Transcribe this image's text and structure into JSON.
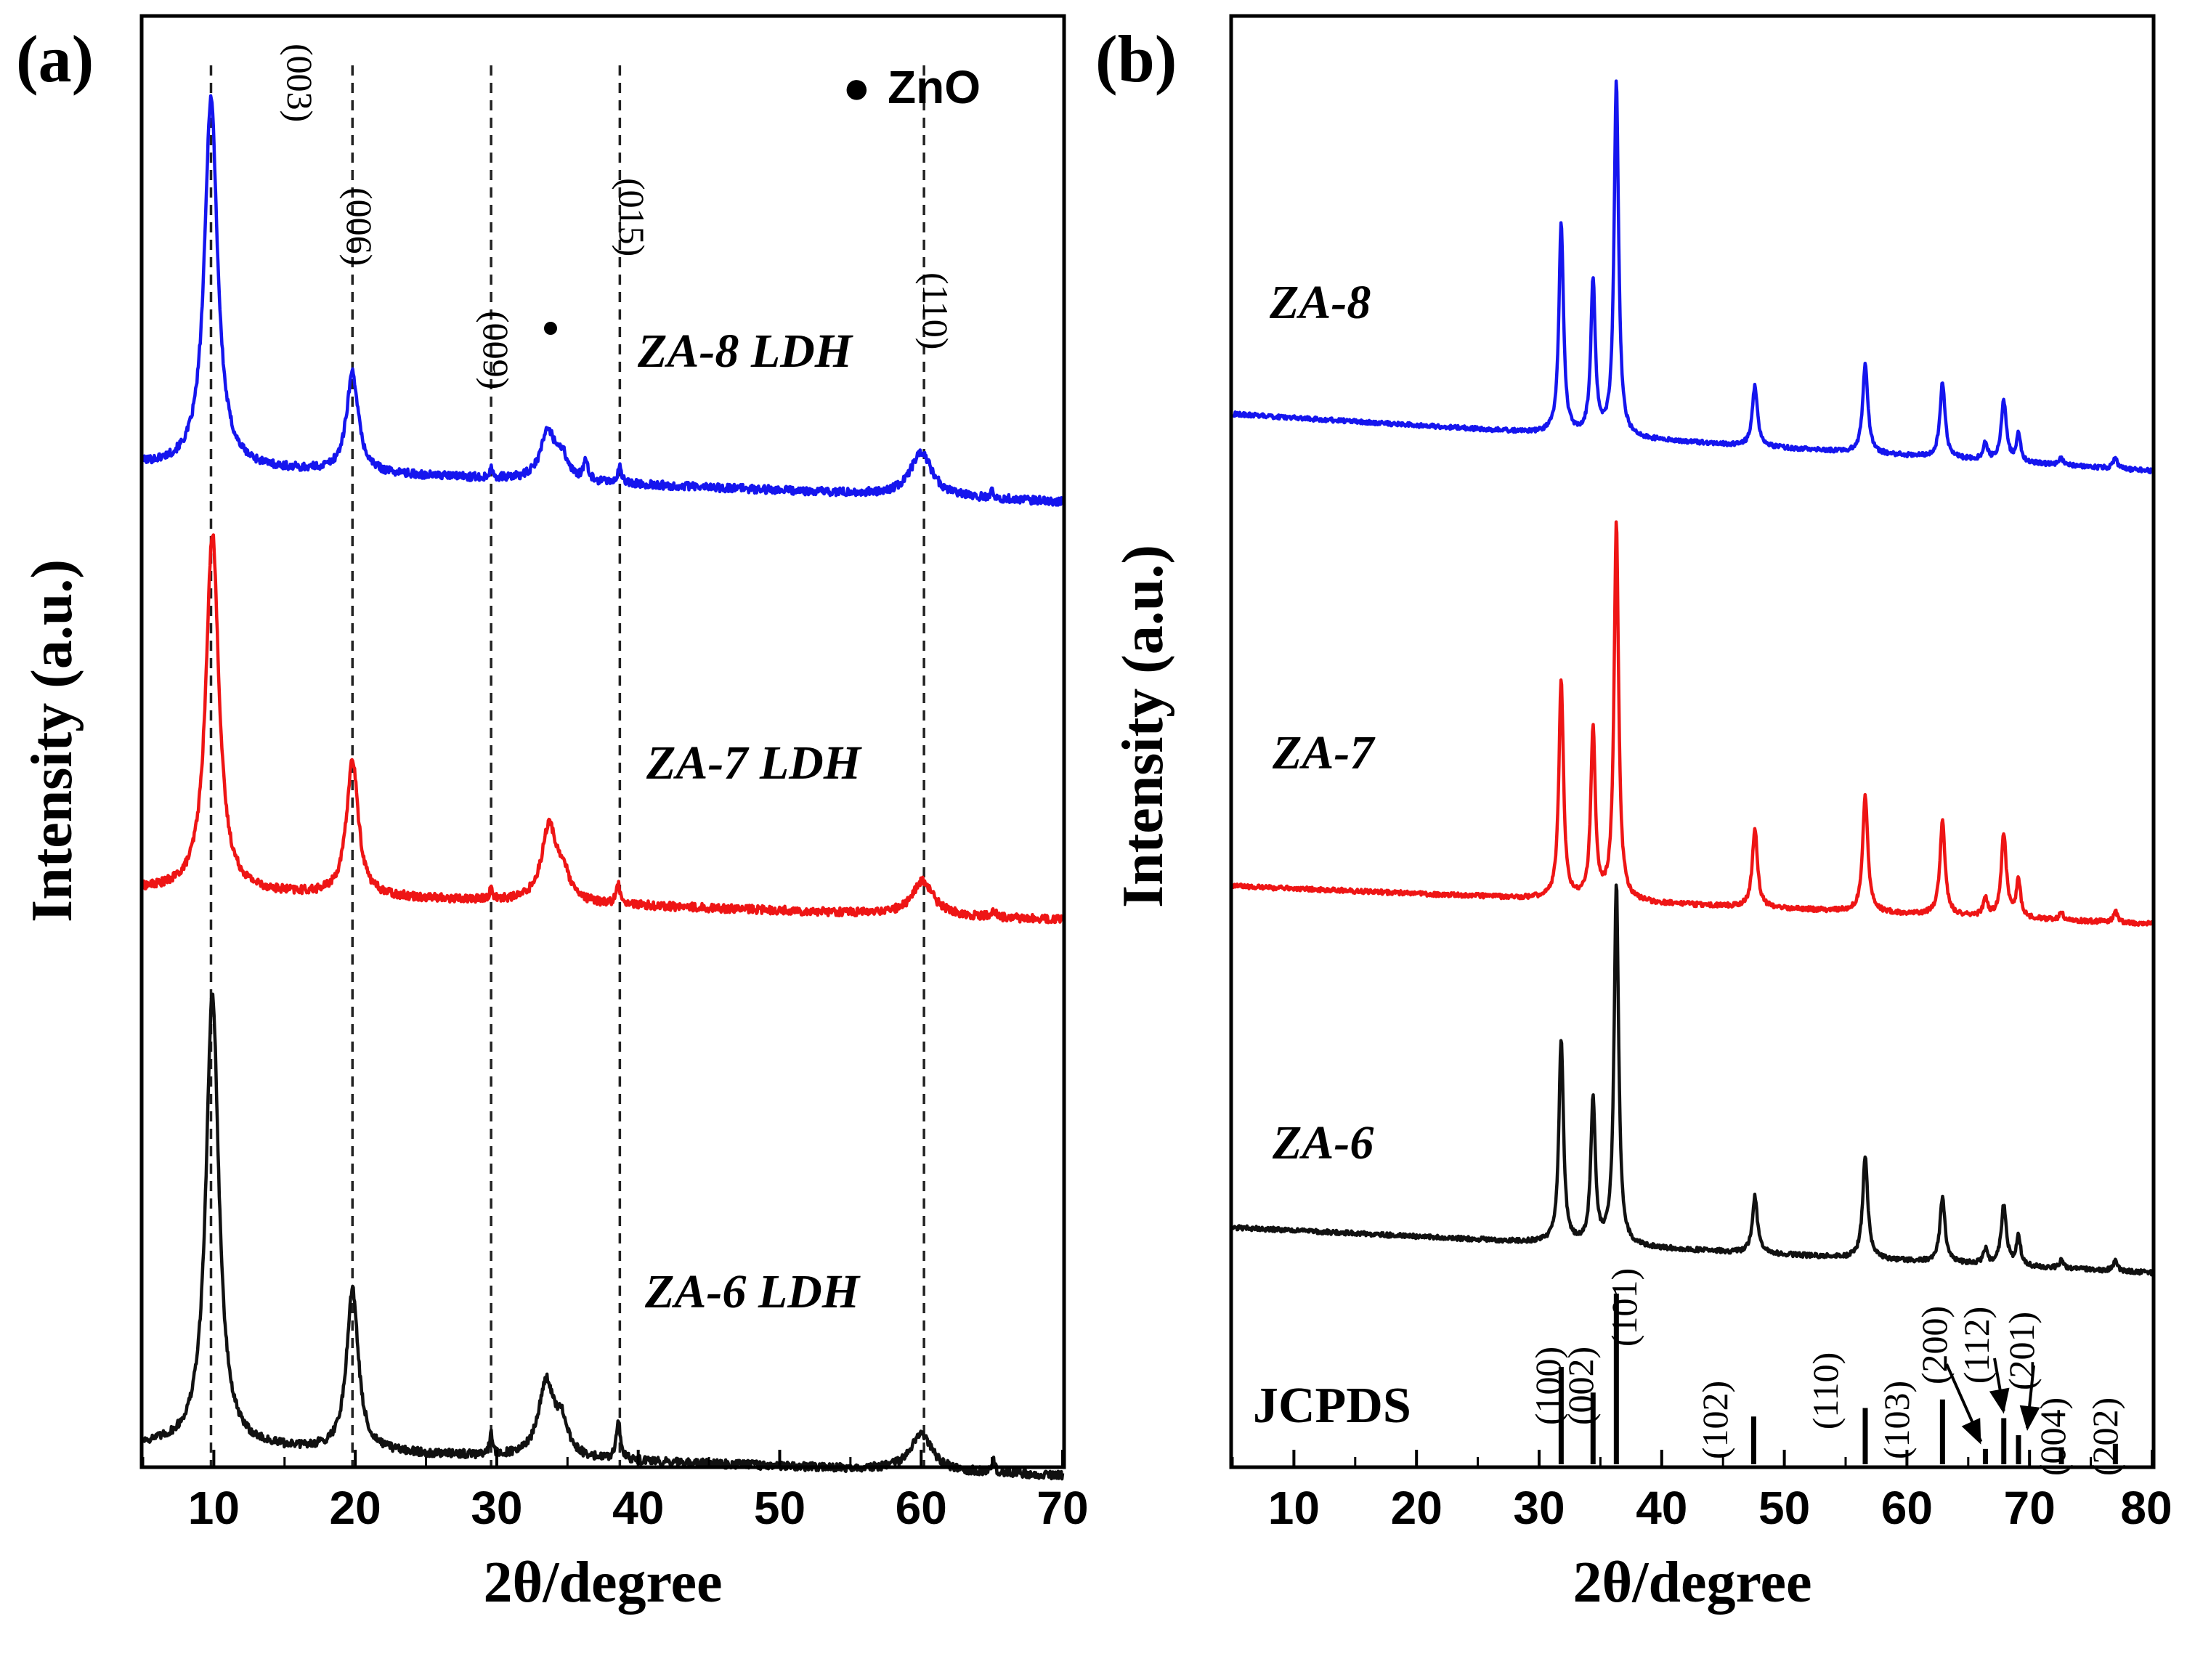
{
  "chart_data": [
    {
      "panel": "(a)",
      "type": "line",
      "xlabel": "2θ/degree",
      "ylabel": "Intensity (a.u.)",
      "xlim": [
        5,
        70
      ],
      "xticks": [
        "10",
        "20",
        "30",
        "40",
        "50",
        "60",
        "70"
      ],
      "legend": {
        "marker": "●",
        "label": "ZnO"
      },
      "reference_lines": [
        {
          "x": 9.8,
          "label": "(003)"
        },
        {
          "x": 19.8,
          "label": "(006)"
        },
        {
          "x": 29.6,
          "label": "(009)"
        },
        {
          "x": 38.7,
          "label": "(015)"
        },
        {
          "x": 60.2,
          "label": "(110)"
        }
      ],
      "zno_marker_x": 33.7,
      "series": [
        {
          "name": "ZA-8 LDH",
          "color": "#1515ee",
          "baseline": [
            0.46,
            0.36
          ],
          "offset_level": 0,
          "peaks": [
            [
              9.8,
              1.0,
              0.55
            ],
            [
              19.8,
              0.27,
              0.5
            ],
            [
              29.6,
              0.03,
              0.12
            ],
            [
              33.6,
              0.13,
              0.6
            ],
            [
              34.6,
              0.06,
              0.5
            ],
            [
              36.3,
              0.05,
              0.18
            ],
            [
              38.7,
              0.04,
              0.18
            ],
            [
              60.0,
              0.12,
              0.9
            ],
            [
              65.0,
              0.02,
              0.15
            ]
          ]
        },
        {
          "name": "ZA-7 LDH",
          "color": "#ee1515",
          "baseline": [
            0.36,
            0.28
          ],
          "offset_level": 1,
          "peaks": [
            [
              9.9,
              0.95,
              0.55
            ],
            [
              19.8,
              0.36,
              0.5
            ],
            [
              29.6,
              0.03,
              0.12
            ],
            [
              33.7,
              0.2,
              0.65
            ],
            [
              34.7,
              0.06,
              0.5
            ],
            [
              38.6,
              0.05,
              0.18
            ],
            [
              60.1,
              0.09,
              0.9
            ],
            [
              65.1,
              0.02,
              0.15
            ]
          ]
        },
        {
          "name": "ZA-6 LDH",
          "color": "#111111",
          "baseline": [
            0.36,
            0.28
          ],
          "offset_level": 2,
          "peaks": [
            [
              9.9,
              1.2,
              0.55
            ],
            [
              19.8,
              0.43,
              0.5
            ],
            [
              29.6,
              0.06,
              0.12
            ],
            [
              33.5,
              0.2,
              0.65
            ],
            [
              34.6,
              0.08,
              0.5
            ],
            [
              38.6,
              0.1,
              0.18
            ],
            [
              60.0,
              0.1,
              0.9
            ],
            [
              65.1,
              0.03,
              0.15
            ]
          ]
        }
      ]
    },
    {
      "panel": "(b)",
      "type": "line",
      "xlabel": "2θ/degree",
      "ylabel": "Intensity (a.u.)",
      "xlim": [
        5,
        80
      ],
      "xticks": [
        "10",
        "20",
        "30",
        "40",
        "50",
        "60",
        "70",
        "80"
      ],
      "series": [
        {
          "name": "ZA-8",
          "color": "#1515ee",
          "baseline": [
            0.18,
            0.02
          ],
          "offset_level": 0,
          "peaks": [
            [
              31.8,
              0.59,
              0.22
            ],
            [
              34.4,
              0.43,
              0.22
            ],
            [
              36.3,
              1.0,
              0.22
            ],
            [
              47.6,
              0.17,
              0.25
            ],
            [
              56.6,
              0.25,
              0.25
            ],
            [
              62.9,
              0.21,
              0.25
            ],
            [
              66.4,
              0.05,
              0.2
            ],
            [
              67.9,
              0.17,
              0.25
            ],
            [
              69.1,
              0.08,
              0.2
            ],
            [
              72.6,
              0.02,
              0.2
            ],
            [
              77.0,
              0.03,
              0.2
            ]
          ]
        },
        {
          "name": "ZA-7",
          "color": "#ee1515",
          "baseline": [
            0.12,
            0.02
          ],
          "offset_level": 1,
          "peaks": [
            [
              31.8,
              0.58,
              0.22
            ],
            [
              34.4,
              0.45,
              0.22
            ],
            [
              36.3,
              1.0,
              0.22
            ],
            [
              47.6,
              0.21,
              0.25
            ],
            [
              56.6,
              0.31,
              0.25
            ],
            [
              62.9,
              0.25,
              0.25
            ],
            [
              66.4,
              0.05,
              0.2
            ],
            [
              67.9,
              0.22,
              0.25
            ],
            [
              69.1,
              0.1,
              0.2
            ],
            [
              72.6,
              0.02,
              0.2
            ],
            [
              77.0,
              0.03,
              0.2
            ]
          ]
        },
        {
          "name": "ZA-6",
          "color": "#111111",
          "baseline": [
            0.14,
            0.02
          ],
          "offset_level": 2,
          "peaks": [
            [
              31.8,
              0.54,
              0.22
            ],
            [
              34.4,
              0.38,
              0.22
            ],
            [
              36.3,
              0.96,
              0.22
            ],
            [
              47.6,
              0.15,
              0.25
            ],
            [
              56.6,
              0.27,
              0.25
            ],
            [
              62.9,
              0.17,
              0.25
            ],
            [
              66.4,
              0.04,
              0.2
            ],
            [
              67.9,
              0.16,
              0.25
            ],
            [
              69.1,
              0.08,
              0.2
            ],
            [
              72.6,
              0.02,
              0.2
            ],
            [
              77.0,
              0.03,
              0.2
            ]
          ]
        }
      ],
      "jcpds": {
        "label": "JCPDS",
        "sticks": [
          {
            "x": 31.8,
            "h": 0.57,
            "label": "(100)"
          },
          {
            "x": 34.4,
            "h": 0.42,
            "label": "(002)"
          },
          {
            "x": 36.3,
            "h": 1.0,
            "label": "(101)"
          },
          {
            "x": 47.5,
            "h": 0.28,
            "label": "(102)"
          },
          {
            "x": 56.6,
            "h": 0.33,
            "label": "(110)"
          },
          {
            "x": 62.9,
            "h": 0.38,
            "label": "(103)"
          },
          {
            "x": 66.4,
            "h": 0.09,
            "label": "(200)"
          },
          {
            "x": 67.9,
            "h": 0.27,
            "label": "(112)"
          },
          {
            "x": 69.1,
            "h": 0.17,
            "label": "(201)"
          },
          {
            "x": 72.6,
            "h": 0.1,
            "label": "(004)"
          },
          {
            "x": 77.0,
            "h": 0.12,
            "label": "(202)"
          }
        ]
      }
    }
  ]
}
